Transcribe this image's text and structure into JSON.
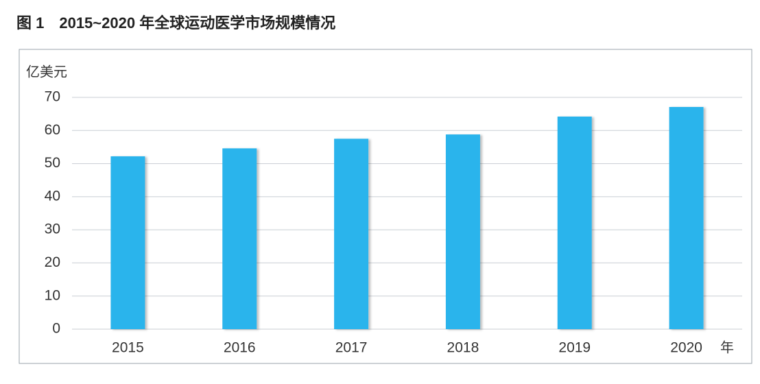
{
  "chart_data": {
    "type": "bar",
    "title": "图 1　2015~2020 年全球运动医学市场规模情况",
    "y_unit": "亿美元",
    "x_unit": "年",
    "categories": [
      "2015",
      "2016",
      "2017",
      "2018",
      "2019",
      "2020"
    ],
    "values": [
      52.2,
      54.6,
      57.5,
      58.8,
      64.2,
      67.1
    ],
    "color": "#29b4ec",
    "ylim": [
      0,
      70
    ],
    "yticks": [
      0,
      10,
      20,
      30,
      40,
      50,
      60,
      70
    ],
    "grid": true
  }
}
